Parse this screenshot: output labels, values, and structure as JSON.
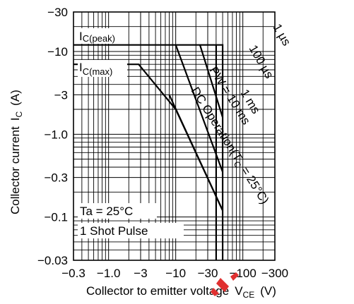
{
  "chart_data": {
    "type": "line",
    "title": "",
    "xlabel": "Collector to emitter voltage",
    "xlabel_symbol": "V",
    "xlabel_subscript": "CE",
    "xlabel_unit": "(V)",
    "ylabel": "Collector current",
    "ylabel_symbol": "I",
    "ylabel_subscript": "C",
    "ylabel_unit": "(A)",
    "x_scale": "log",
    "y_scale": "log",
    "xlim": [
      0.3,
      300
    ],
    "ylim": [
      0.03,
      30
    ],
    "x_ticks": [
      0.3,
      1,
      3,
      10,
      30,
      100,
      300
    ],
    "x_tick_labels": [
      "−0.3",
      "−1.0",
      "−3",
      "−10",
      "−30",
      "−100",
      "−300"
    ],
    "y_ticks": [
      0.03,
      0.1,
      0.3,
      1,
      3,
      10,
      30
    ],
    "y_tick_labels": [
      "−0.03",
      "−0.1",
      "−0.3",
      "−1.0",
      "−3",
      "−10",
      "−30"
    ],
    "grid": true,
    "series": [
      {
        "name": "DC Operation(T",
        "label_sub": "C",
        "label_rest": " = 25°C)",
        "x": [
          0.3,
          2.8,
          10,
          50
        ],
        "y": [
          7,
          7,
          2,
          0.12
        ]
      },
      {
        "name": "PW = 10 ms",
        "x": [
          8,
          50
        ],
        "y": [
          3,
          0.12
        ]
      },
      {
        "name": "1 ms",
        "x": [
          10,
          50
        ],
        "y": [
          12,
          0.35
        ]
      },
      {
        "name": "100 µs",
        "x": [
          23,
          50
        ],
        "y": [
          12,
          1.6
        ]
      },
      {
        "name": "1 µs",
        "x": [
          0.3,
          50,
          50
        ],
        "y": [
          12,
          12,
          0.03
        ]
      },
      {
        "name": "",
        "x": [
          40,
          40
        ],
        "y": [
          0.03,
          12
        ]
      }
    ],
    "annotations": {
      "ic_peak": {
        "main": "I",
        "sub": "C(peak)"
      },
      "ic_max": {
        "main": "I",
        "sub": "C(max)"
      },
      "ta": "Ta = 25°C",
      "pulse": "1 Shot Pulse"
    }
  }
}
